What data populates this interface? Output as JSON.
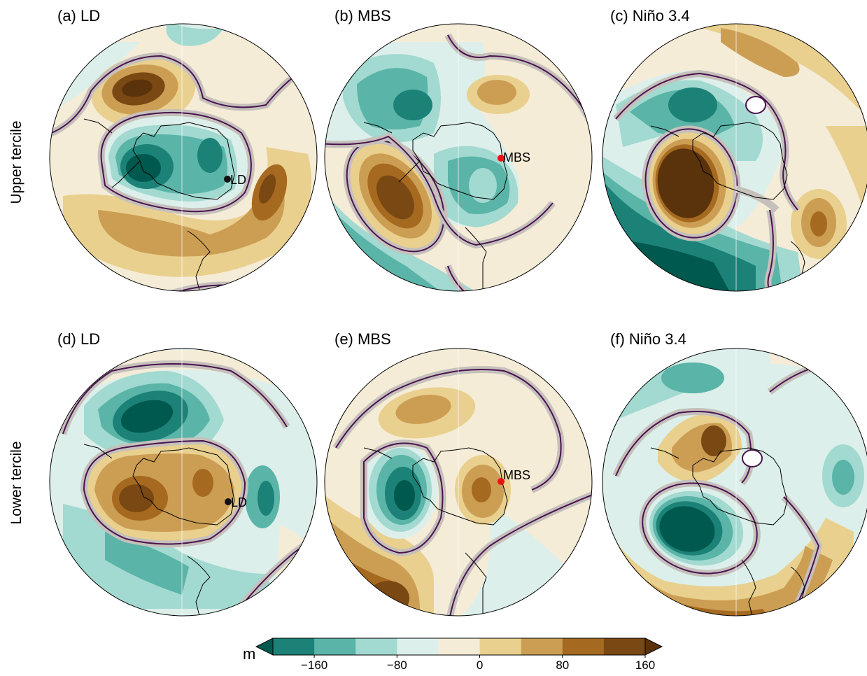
{
  "row_labels": {
    "upper": "Upper tercile",
    "lower": "Lower tercile"
  },
  "panels": [
    {
      "title": "(a) LD",
      "marker": {
        "label": "LD",
        "color": "#111111"
      }
    },
    {
      "title": "(b) MBS",
      "marker": {
        "label": "MBS",
        "color": "#ee1111"
      }
    },
    {
      "title": "(c) Niño 3.4"
    },
    {
      "title": "(d) LD",
      "marker": {
        "label": "LD",
        "color": "#111111"
      }
    },
    {
      "title": "(e) MBS",
      "marker": {
        "label": "MBS",
        "color": "#ee1111"
      }
    },
    {
      "title": "(f) Niño 3.4"
    }
  ],
  "colorbar": {
    "unit": "m",
    "ticks": [
      "−160",
      "−80",
      "0",
      "80",
      "160"
    ],
    "colors": [
      "#00594e",
      "#1c8278",
      "#5ab4a8",
      "#a2d9d0",
      "#dcefeb",
      "#f5ecd7",
      "#e9d08e",
      "#cc9e53",
      "#a56a20",
      "#7a4812",
      "#5a320c"
    ]
  },
  "contour_colors": {
    "significance_fill": "#c5c0bb",
    "significance_line": "#4a1350",
    "coastline": "#000000"
  }
}
